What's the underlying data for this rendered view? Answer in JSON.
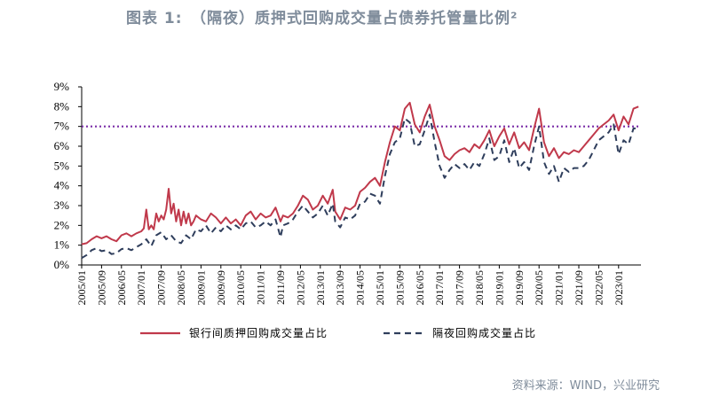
{
  "title": "图表 1:　（隔夜）质押式回购成交量占债券托管量比例²",
  "source": "资料来源：WIND，兴业研究",
  "colors": {
    "series1": "#c0394b",
    "series2": "#2f3e5c",
    "refline": "#7b2fa8",
    "text": "#7f8c9b"
  },
  "chart_data": {
    "type": "line",
    "title": "",
    "xlabel": "",
    "ylabel": "",
    "ylim": [
      0,
      9
    ],
    "yticks": [
      "0%",
      "1%",
      "2%",
      "3%",
      "4%",
      "5%",
      "6%",
      "7%",
      "8%",
      "9%"
    ],
    "xticks": [
      "2005/01",
      "2005/09",
      "2006/05",
      "2007/01",
      "2007/09",
      "2008/05",
      "2009/01",
      "2009/09",
      "2010/05",
      "2011/01",
      "2011/09",
      "2012/05",
      "2013/01",
      "2013/09",
      "2014/05",
      "2015/01",
      "2015/09",
      "2016/05",
      "2017/01",
      "2017/09",
      "2018/05",
      "2019/01",
      "2019/09",
      "2020/05",
      "2021/01",
      "2021/09",
      "2022/05",
      "2023/01"
    ],
    "reference_line": {
      "value": 7.0,
      "style": "dotted"
    },
    "legend": {
      "position": "bottom"
    },
    "series": [
      {
        "name": "银行间质押回购成交量占比",
        "style": "solid",
        "points": [
          [
            "2005/01",
            1.05
          ],
          [
            "2005/03",
            1.1
          ],
          [
            "2005/05",
            1.3
          ],
          [
            "2005/07",
            1.45
          ],
          [
            "2005/09",
            1.35
          ],
          [
            "2005/11",
            1.45
          ],
          [
            "2006/01",
            1.3
          ],
          [
            "2006/03",
            1.2
          ],
          [
            "2006/05",
            1.5
          ],
          [
            "2006/07",
            1.6
          ],
          [
            "2006/09",
            1.45
          ],
          [
            "2006/11",
            1.6
          ],
          [
            "2007/01",
            1.7
          ],
          [
            "2007/02",
            1.85
          ],
          [
            "2007/03",
            2.8
          ],
          [
            "2007/04",
            1.8
          ],
          [
            "2007/05",
            2.0
          ],
          [
            "2007/06",
            1.8
          ],
          [
            "2007/07",
            2.6
          ],
          [
            "2007/08",
            2.2
          ],
          [
            "2007/09",
            2.5
          ],
          [
            "2007/10",
            2.3
          ],
          [
            "2007/11",
            2.8
          ],
          [
            "2007/12",
            3.85
          ],
          [
            "2008/01",
            2.6
          ],
          [
            "2008/02",
            3.1
          ],
          [
            "2008/03",
            2.2
          ],
          [
            "2008/04",
            2.8
          ],
          [
            "2008/05",
            2.0
          ],
          [
            "2008/06",
            2.7
          ],
          [
            "2008/07",
            2.1
          ],
          [
            "2008/08",
            2.6
          ],
          [
            "2008/09",
            2.0
          ],
          [
            "2008/10",
            2.2
          ],
          [
            "2008/11",
            2.5
          ],
          [
            "2009/01",
            2.3
          ],
          [
            "2009/03",
            2.2
          ],
          [
            "2009/05",
            2.6
          ],
          [
            "2009/07",
            2.4
          ],
          [
            "2009/09",
            2.1
          ],
          [
            "2009/11",
            2.4
          ],
          [
            "2010/01",
            2.1
          ],
          [
            "2010/03",
            2.3
          ],
          [
            "2010/05",
            2.0
          ],
          [
            "2010/07",
            2.5
          ],
          [
            "2010/09",
            2.7
          ],
          [
            "2010/11",
            2.3
          ],
          [
            "2011/01",
            2.6
          ],
          [
            "2011/03",
            2.4
          ],
          [
            "2011/05",
            2.5
          ],
          [
            "2011/07",
            2.9
          ],
          [
            "2011/09",
            2.2
          ],
          [
            "2011/10",
            2.5
          ],
          [
            "2011/12",
            2.4
          ],
          [
            "2012/02",
            2.6
          ],
          [
            "2012/04",
            3.0
          ],
          [
            "2012/06",
            3.5
          ],
          [
            "2012/08",
            3.3
          ],
          [
            "2012/10",
            2.8
          ],
          [
            "2012/12",
            3.0
          ],
          [
            "2013/02",
            3.5
          ],
          [
            "2013/04",
            3.1
          ],
          [
            "2013/06",
            3.8
          ],
          [
            "2013/07",
            2.7
          ],
          [
            "2013/09",
            2.3
          ],
          [
            "2013/11",
            2.9
          ],
          [
            "2014/01",
            2.8
          ],
          [
            "2014/03",
            3.0
          ],
          [
            "2014/05",
            3.7
          ],
          [
            "2014/07",
            3.9
          ],
          [
            "2014/09",
            4.2
          ],
          [
            "2014/11",
            4.4
          ],
          [
            "2015/01",
            4.0
          ],
          [
            "2015/03",
            5.2
          ],
          [
            "2015/05",
            6.2
          ],
          [
            "2015/07",
            7.0
          ],
          [
            "2015/09",
            6.8
          ],
          [
            "2015/11",
            7.9
          ],
          [
            "2016/01",
            8.2
          ],
          [
            "2016/03",
            7.1
          ],
          [
            "2016/05",
            6.7
          ],
          [
            "2016/07",
            7.5
          ],
          [
            "2016/09",
            8.1
          ],
          [
            "2016/11",
            7.0
          ],
          [
            "2017/01",
            6.3
          ],
          [
            "2017/03",
            5.5
          ],
          [
            "2017/05",
            5.3
          ],
          [
            "2017/07",
            5.6
          ],
          [
            "2017/09",
            5.8
          ],
          [
            "2017/11",
            5.9
          ],
          [
            "2018/01",
            5.7
          ],
          [
            "2018/03",
            6.1
          ],
          [
            "2018/05",
            5.9
          ],
          [
            "2018/07",
            6.3
          ],
          [
            "2018/09",
            6.8
          ],
          [
            "2018/11",
            6.0
          ],
          [
            "2019/01",
            6.5
          ],
          [
            "2019/03",
            6.9
          ],
          [
            "2019/05",
            6.1
          ],
          [
            "2019/07",
            6.7
          ],
          [
            "2019/09",
            5.9
          ],
          [
            "2019/11",
            6.2
          ],
          [
            "2020/01",
            5.8
          ],
          [
            "2020/03",
            6.9
          ],
          [
            "2020/05",
            7.9
          ],
          [
            "2020/07",
            6.2
          ],
          [
            "2020/09",
            5.5
          ],
          [
            "2020/11",
            5.9
          ],
          [
            "2021/01",
            5.4
          ],
          [
            "2021/03",
            5.7
          ],
          [
            "2021/05",
            5.6
          ],
          [
            "2021/07",
            5.8
          ],
          [
            "2021/09",
            5.7
          ],
          [
            "2021/11",
            6.0
          ],
          [
            "2022/01",
            6.3
          ],
          [
            "2022/03",
            6.6
          ],
          [
            "2022/05",
            6.9
          ],
          [
            "2022/07",
            7.1
          ],
          [
            "2022/09",
            7.3
          ],
          [
            "2022/11",
            7.6
          ],
          [
            "2023/01",
            6.8
          ],
          [
            "2023/03",
            7.5
          ],
          [
            "2023/05",
            7.1
          ],
          [
            "2023/07",
            7.9
          ],
          [
            "2023/09",
            8.0
          ]
        ]
      },
      {
        "name": "隔夜回购成交量占比",
        "style": "dashed",
        "points": [
          [
            "2005/01",
            0.35
          ],
          [
            "2005/03",
            0.5
          ],
          [
            "2005/05",
            0.75
          ],
          [
            "2005/07",
            0.85
          ],
          [
            "2005/09",
            0.7
          ],
          [
            "2005/11",
            0.75
          ],
          [
            "2006/01",
            0.55
          ],
          [
            "2006/03",
            0.6
          ],
          [
            "2006/05",
            0.8
          ],
          [
            "2006/07",
            0.85
          ],
          [
            "2006/09",
            0.75
          ],
          [
            "2006/11",
            0.9
          ],
          [
            "2007/01",
            1.05
          ],
          [
            "2007/03",
            1.3
          ],
          [
            "2007/05",
            0.95
          ],
          [
            "2007/07",
            1.5
          ],
          [
            "2007/09",
            1.65
          ],
          [
            "2007/11",
            1.3
          ],
          [
            "2008/01",
            1.5
          ],
          [
            "2008/03",
            1.2
          ],
          [
            "2008/05",
            1.1
          ],
          [
            "2008/07",
            1.5
          ],
          [
            "2008/09",
            1.3
          ],
          [
            "2008/11",
            1.8
          ],
          [
            "2009/01",
            1.7
          ],
          [
            "2009/03",
            2.0
          ],
          [
            "2009/05",
            1.6
          ],
          [
            "2009/07",
            1.9
          ],
          [
            "2009/09",
            1.7
          ],
          [
            "2009/11",
            2.0
          ],
          [
            "2010/01",
            1.8
          ],
          [
            "2010/03",
            2.0
          ],
          [
            "2010/05",
            1.8
          ],
          [
            "2010/07",
            2.1
          ],
          [
            "2010/09",
            2.2
          ],
          [
            "2010/11",
            1.9
          ],
          [
            "2011/01",
            2.0
          ],
          [
            "2011/03",
            2.2
          ],
          [
            "2011/05",
            2.0
          ],
          [
            "2011/07",
            2.3
          ],
          [
            "2011/09",
            1.4
          ],
          [
            "2011/10",
            2.0
          ],
          [
            "2011/12",
            2.1
          ],
          [
            "2012/02",
            2.3
          ],
          [
            "2012/04",
            2.7
          ],
          [
            "2012/06",
            3.0
          ],
          [
            "2012/08",
            2.7
          ],
          [
            "2012/10",
            2.4
          ],
          [
            "2012/12",
            2.6
          ],
          [
            "2013/02",
            3.0
          ],
          [
            "2013/04",
            2.5
          ],
          [
            "2013/06",
            3.1
          ],
          [
            "2013/07",
            2.2
          ],
          [
            "2013/09",
            1.9
          ],
          [
            "2013/11",
            2.4
          ],
          [
            "2014/01",
            2.3
          ],
          [
            "2014/03",
            2.5
          ],
          [
            "2014/05",
            3.1
          ],
          [
            "2014/07",
            3.2
          ],
          [
            "2014/09",
            3.6
          ],
          [
            "2014/11",
            3.5
          ],
          [
            "2015/01",
            3.1
          ],
          [
            "2015/03",
            4.5
          ],
          [
            "2015/05",
            5.6
          ],
          [
            "2015/07",
            6.2
          ],
          [
            "2015/09",
            6.4
          ],
          [
            "2015/11",
            7.4
          ],
          [
            "2016/01",
            7.2
          ],
          [
            "2016/03",
            6.0
          ],
          [
            "2016/05",
            6.1
          ],
          [
            "2016/07",
            6.8
          ],
          [
            "2016/09",
            7.6
          ],
          [
            "2016/11",
            6.2
          ],
          [
            "2017/01",
            5.0
          ],
          [
            "2017/03",
            4.4
          ],
          [
            "2017/05",
            4.8
          ],
          [
            "2017/07",
            5.1
          ],
          [
            "2017/09",
            4.9
          ],
          [
            "2017/11",
            5.1
          ],
          [
            "2018/01",
            4.8
          ],
          [
            "2018/03",
            5.2
          ],
          [
            "2018/05",
            5.0
          ],
          [
            "2018/07",
            5.6
          ],
          [
            "2018/09",
            6.4
          ],
          [
            "2018/11",
            5.3
          ],
          [
            "2019/01",
            5.5
          ],
          [
            "2019/03",
            6.3
          ],
          [
            "2019/05",
            5.2
          ],
          [
            "2019/07",
            5.9
          ],
          [
            "2019/09",
            4.9
          ],
          [
            "2019/11",
            5.2
          ],
          [
            "2020/01",
            4.8
          ],
          [
            "2020/03",
            6.0
          ],
          [
            "2020/05",
            7.0
          ],
          [
            "2020/07",
            5.2
          ],
          [
            "2020/09",
            4.6
          ],
          [
            "2020/11",
            5.0
          ],
          [
            "2021/01",
            4.2
          ],
          [
            "2021/03",
            4.9
          ],
          [
            "2021/05",
            4.7
          ],
          [
            "2021/07",
            4.9
          ],
          [
            "2021/09",
            4.9
          ],
          [
            "2021/11",
            5.0
          ],
          [
            "2022/01",
            5.3
          ],
          [
            "2022/03",
            5.8
          ],
          [
            "2022/05",
            6.3
          ],
          [
            "2022/07",
            6.5
          ],
          [
            "2022/09",
            6.7
          ],
          [
            "2022/11",
            7.1
          ],
          [
            "2023/01",
            5.6
          ],
          [
            "2023/03",
            6.3
          ],
          [
            "2023/05",
            6.1
          ],
          [
            "2023/07",
            6.9
          ],
          [
            "2023/09",
            6.9
          ]
        ]
      }
    ]
  }
}
